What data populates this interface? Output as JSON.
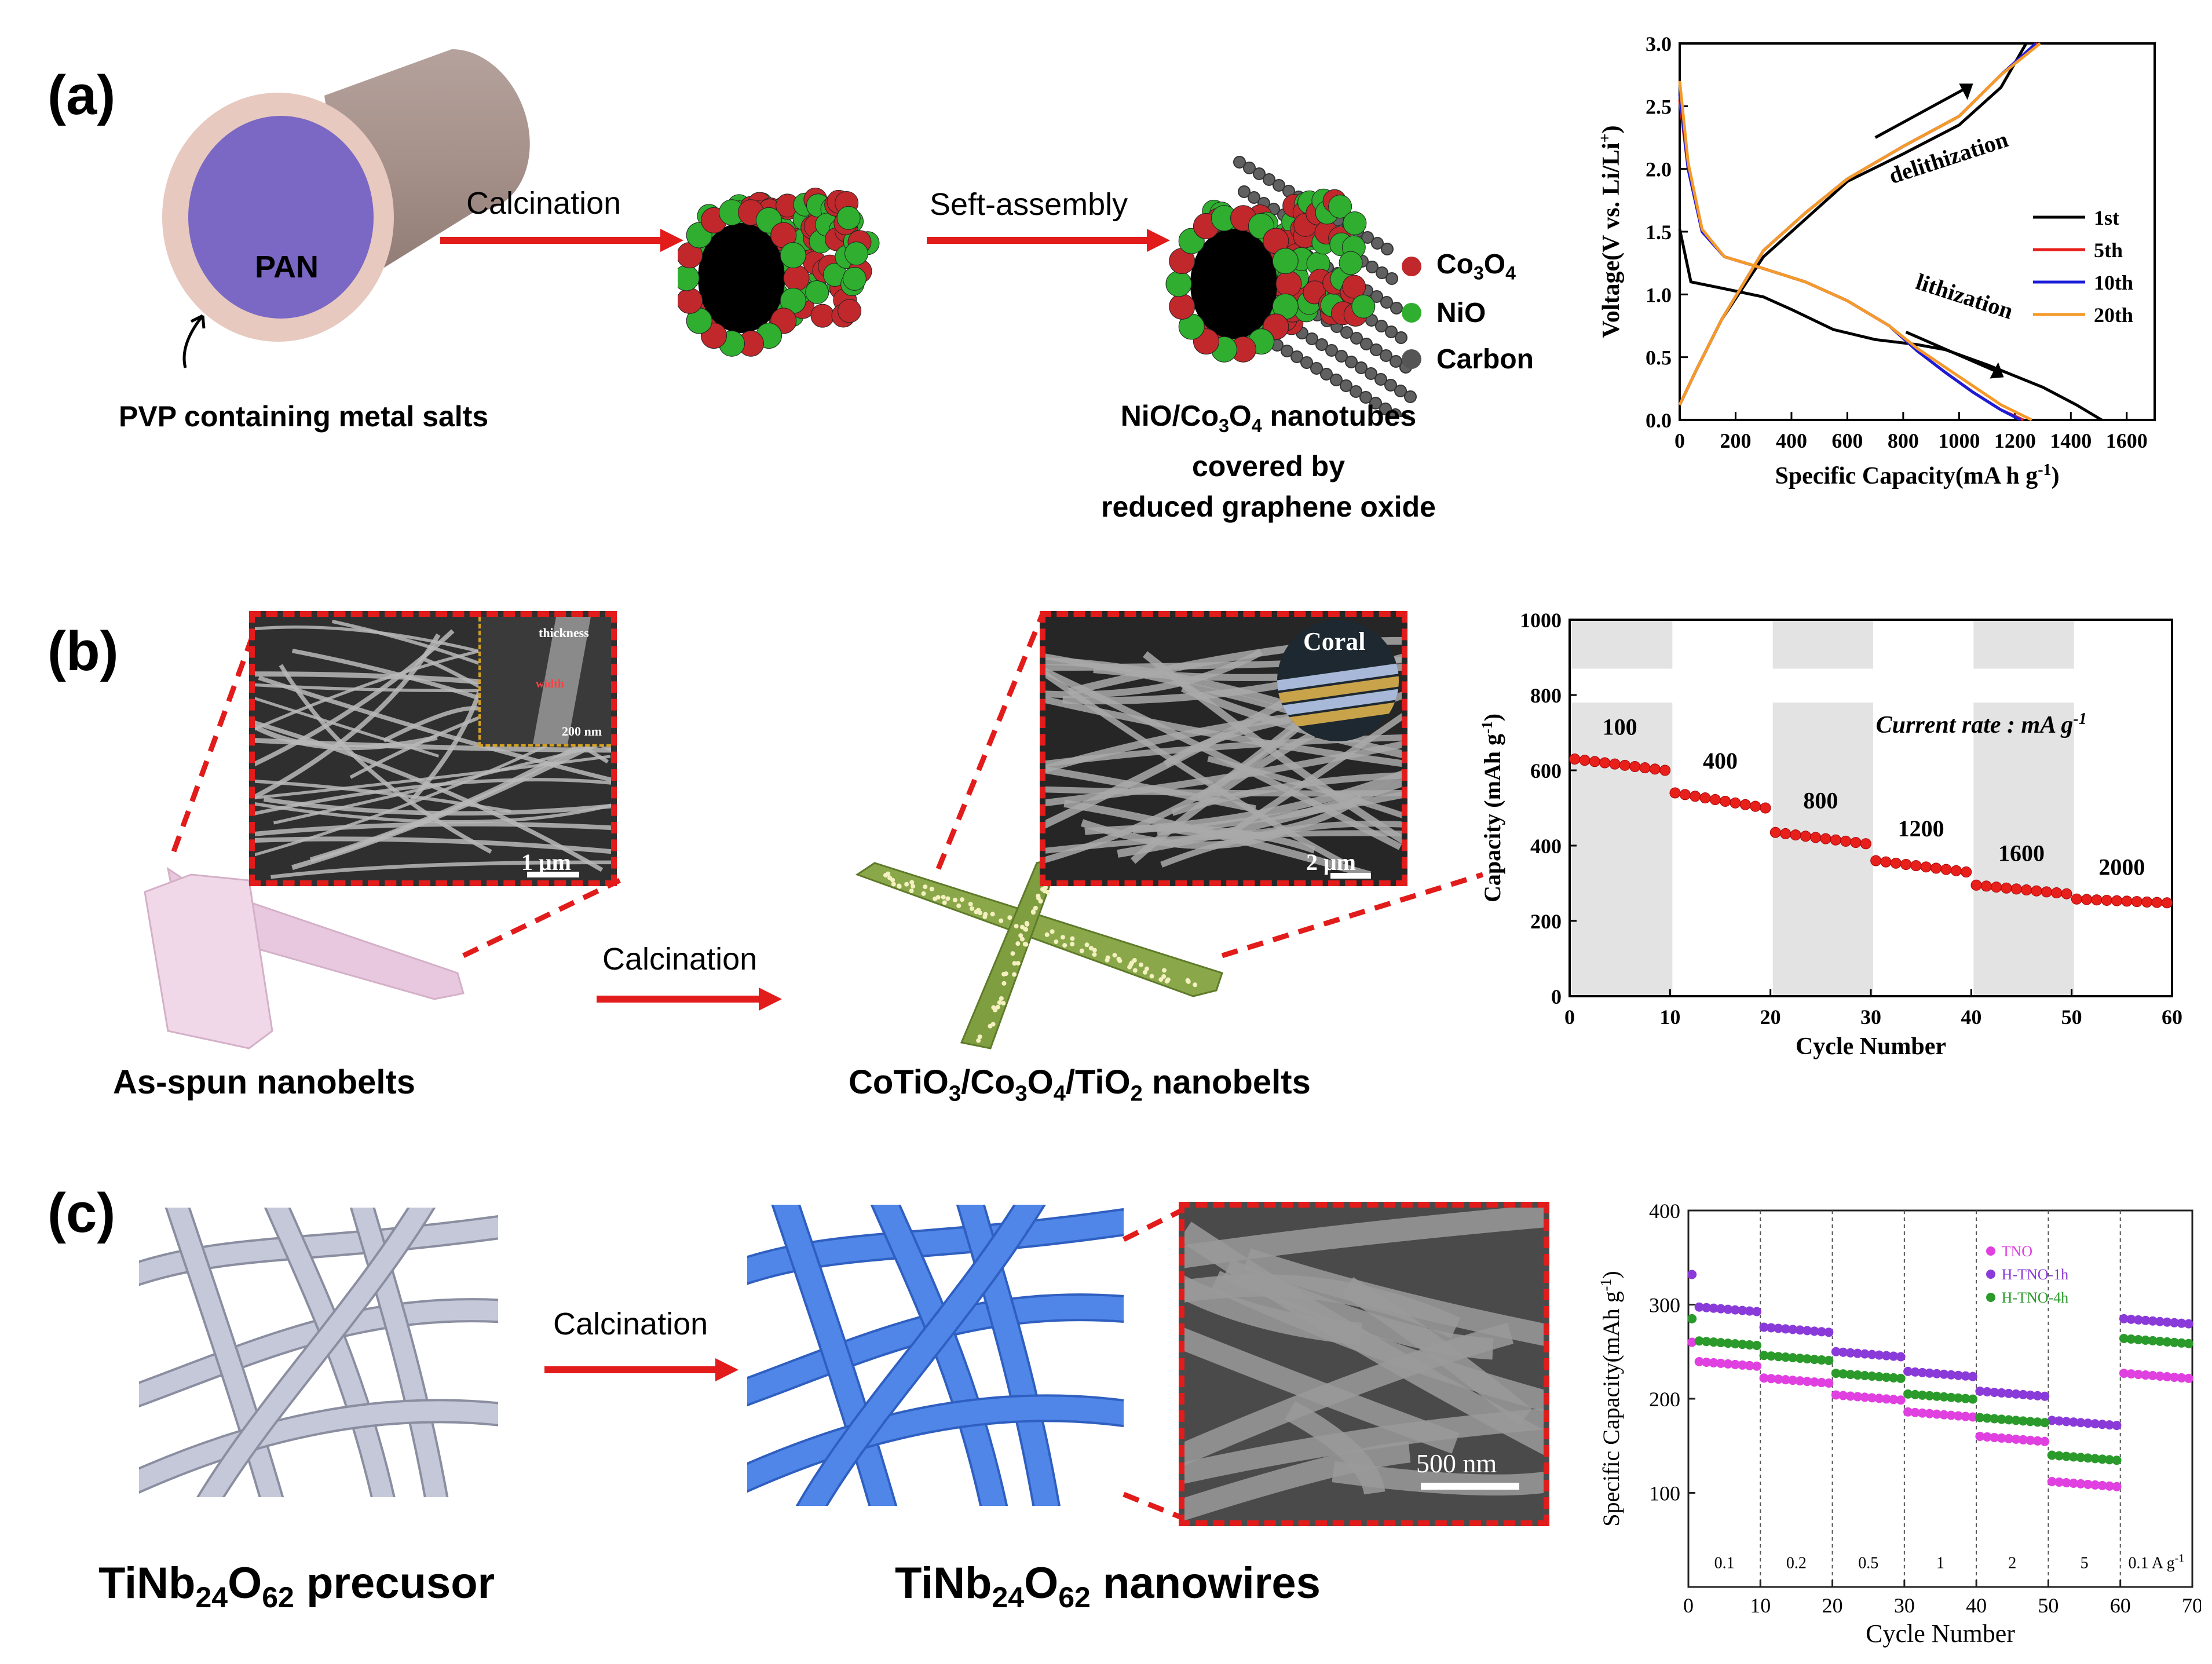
{
  "panel_a": {
    "label": "(a)",
    "pan_label": "PAN",
    "pvp_label": "PVP containing metal salts",
    "arrow1_label": "Calcination",
    "arrow2_label": "Seft-assembly",
    "legend": [
      {
        "label": "Co",
        "sub1": "3",
        "mid": "O",
        "sub2": "4",
        "color": "#c0282c"
      },
      {
        "label": "NiO",
        "color": "#2fae2f"
      },
      {
        "label": "Carbon",
        "color": "#555555"
      }
    ],
    "caption": {
      "line1_pre": "NiO/Co",
      "line1_sub1": "3",
      "line1_mid": "O",
      "line1_sub2": "4",
      "line1_post": " nanotubes",
      "line2": "covered by",
      "line3": "reduced graphene oxide"
    }
  },
  "panel_b": {
    "label": "(b)",
    "sem1_scale": "1 μm",
    "sem1_inset_scale": "200 nm",
    "sem1_inset_labels": [
      "thickness",
      "width"
    ],
    "sem2_scale": "2 μm",
    "sem2_inset_label": "Coral",
    "arrow_label": "Calcination",
    "left_caption": "As-spun nanobelts",
    "right_caption": {
      "p1": "CoTiO",
      "s1": "3",
      "p2": "/Co",
      "s2": "3",
      "p3": "O",
      "s3": "4",
      "p4": "/TiO",
      "s4": "2",
      "p5": " nanobelts"
    }
  },
  "panel_c": {
    "label": "(c)",
    "arrow_label": "Calcination",
    "sem_scale": "500 nm",
    "left_caption": {
      "p1": "TiNb",
      "s1": "24",
      "p2": "O",
      "s2": "62",
      "p3": " precusor"
    },
    "right_caption": {
      "p1": "TiNb",
      "s1": "24",
      "p2": "O",
      "s2": "62",
      "p3": " nanowires"
    }
  },
  "chart_data": [
    {
      "type": "line",
      "panel": "a",
      "xlabel": "Specific Capacity(mA h g",
      "xlabel_sup": "-1",
      "xlabel_end": ")",
      "ylabel": "Voltage(V vs. Li/Li",
      "ylabel_sup": "+",
      "ylabel_end": ")",
      "xlim": [
        0,
        1700
      ],
      "ylim": [
        0,
        3.0
      ],
      "xticks": [
        "0",
        "200",
        "400",
        "600",
        "800",
        "1000",
        "1200",
        "1400",
        "1600"
      ],
      "yticks": [
        "0.0",
        "0.5",
        "1.0",
        "1.5",
        "2.0",
        "2.5",
        "3.0"
      ],
      "annotations": [
        "delithization",
        "lithization"
      ],
      "series": [
        {
          "name": "1st",
          "color": "#000000",
          "discharge": [
            [
              0,
              1.52
            ],
            [
              40,
              1.1
            ],
            [
              150,
              1.05
            ],
            [
              300,
              0.98
            ],
            [
              400,
              0.88
            ],
            [
              550,
              0.72
            ],
            [
              700,
              0.64
            ],
            [
              850,
              0.6
            ],
            [
              950,
              0.56
            ],
            [
              1100,
              0.44
            ],
            [
              1300,
              0.26
            ],
            [
              1420,
              0.12
            ],
            [
              1510,
              0.0
            ]
          ],
          "charge": [
            [
              0,
              0.12
            ],
            [
              60,
              0.4
            ],
            [
              150,
              0.8
            ],
            [
              300,
              1.3
            ],
            [
              450,
              1.6
            ],
            [
              600,
              1.9
            ],
            [
              800,
              2.12
            ],
            [
              1000,
              2.35
            ],
            [
              1150,
              2.65
            ],
            [
              1240,
              3.0
            ]
          ]
        },
        {
          "name": "5th",
          "color": "#e8201c",
          "discharge": [
            [
              0,
              2.55
            ],
            [
              30,
              2.0
            ],
            [
              80,
              1.5
            ],
            [
              160,
              1.3
            ],
            [
              280,
              1.22
            ],
            [
              450,
              1.1
            ],
            [
              600,
              0.95
            ],
            [
              750,
              0.75
            ],
            [
              850,
              0.55
            ],
            [
              950,
              0.38
            ],
            [
              1050,
              0.22
            ],
            [
              1150,
              0.08
            ],
            [
              1230,
              0.0
            ]
          ],
          "charge": [
            [
              0,
              0.12
            ],
            [
              60,
              0.4
            ],
            [
              150,
              0.8
            ],
            [
              300,
              1.35
            ],
            [
              450,
              1.65
            ],
            [
              600,
              1.92
            ],
            [
              800,
              2.18
            ],
            [
              1000,
              2.42
            ],
            [
              1150,
              2.75
            ],
            [
              1280,
              3.0
            ]
          ]
        },
        {
          "name": "10th",
          "color": "#1c1cd8",
          "discharge": [
            [
              0,
              2.6
            ],
            [
              30,
              2.0
            ],
            [
              80,
              1.5
            ],
            [
              160,
              1.3
            ],
            [
              280,
              1.22
            ],
            [
              450,
              1.1
            ],
            [
              600,
              0.95
            ],
            [
              750,
              0.75
            ],
            [
              850,
              0.55
            ],
            [
              950,
              0.38
            ],
            [
              1050,
              0.22
            ],
            [
              1150,
              0.08
            ],
            [
              1220,
              0.0
            ]
          ],
          "charge": [
            [
              0,
              0.12
            ],
            [
              60,
              0.4
            ],
            [
              150,
              0.8
            ],
            [
              300,
              1.35
            ],
            [
              450,
              1.65
            ],
            [
              600,
              1.92
            ],
            [
              800,
              2.18
            ],
            [
              1000,
              2.42
            ],
            [
              1150,
              2.75
            ],
            [
              1275,
              3.0
            ]
          ]
        },
        {
          "name": "20th",
          "color": "#f59a2a",
          "discharge": [
            [
              0,
              2.7
            ],
            [
              30,
              2.05
            ],
            [
              80,
              1.52
            ],
            [
              160,
              1.3
            ],
            [
              280,
              1.22
            ],
            [
              450,
              1.1
            ],
            [
              600,
              0.95
            ],
            [
              750,
              0.75
            ],
            [
              850,
              0.57
            ],
            [
              950,
              0.42
            ],
            [
              1050,
              0.27
            ],
            [
              1150,
              0.12
            ],
            [
              1260,
              0.0
            ]
          ],
          "charge": [
            [
              0,
              0.12
            ],
            [
              60,
              0.4
            ],
            [
              150,
              0.8
            ],
            [
              300,
              1.35
            ],
            [
              450,
              1.65
            ],
            [
              600,
              1.92
            ],
            [
              800,
              2.18
            ],
            [
              1000,
              2.42
            ],
            [
              1150,
              2.75
            ],
            [
              1290,
              3.0
            ]
          ]
        }
      ]
    },
    {
      "type": "scatter",
      "panel": "b",
      "xlabel": "Cycle Number",
      "ylabel": "Capacity (mAh g",
      "ylabel_sup": "-1",
      "ylabel_end": ")",
      "xlim": [
        0,
        60
      ],
      "ylim": [
        0,
        1000
      ],
      "xticks": [
        "0",
        "10",
        "20",
        "30",
        "40",
        "50",
        "60"
      ],
      "yticks": [
        "0",
        "200",
        "400",
        "600",
        "800",
        "1000"
      ],
      "annotation": "Current rate : mA g",
      "annotation_sup": "-1",
      "rate_labels": [
        "100",
        "400",
        "800",
        "1200",
        "1600",
        "2000"
      ],
      "segments": [
        {
          "rate": "100",
          "start": 630,
          "end": 600
        },
        {
          "rate": "400",
          "start": 540,
          "end": 500
        },
        {
          "rate": "800",
          "start": 435,
          "end": 405
        },
        {
          "rate": "1200",
          "start": 360,
          "end": 330
        },
        {
          "rate": "1600",
          "start": 295,
          "end": 272
        },
        {
          "rate": "2000",
          "start": 258,
          "end": 248
        }
      ]
    },
    {
      "type": "scatter",
      "panel": "c",
      "xlabel": "Cycle Number",
      "ylabel": "Specific Capacity(mAh g",
      "ylabel_sup": "-1",
      "ylabel_end": ")",
      "xlim": [
        0,
        70
      ],
      "ylim": [
        0,
        400
      ],
      "xticks": [
        "0",
        "10",
        "20",
        "30",
        "40",
        "50",
        "60",
        "70"
      ],
      "yticks": [
        "100",
        "200",
        "300",
        "400"
      ],
      "rate_labels": [
        "0.1",
        "0.2",
        "0.5",
        "1",
        "2",
        "5",
        "0.1 A g"
      ],
      "rate_label_sup": "-1",
      "series": [
        {
          "name": "TNO",
          "color": "#e040e0",
          "levels": [
            240,
            222,
            204,
            186,
            160,
            112,
            227
          ],
          "first": 260
        },
        {
          "name": "H-TNO-1h",
          "color": "#8a3ad8",
          "levels": [
            298,
            276,
            250,
            229,
            208,
            177,
            285
          ],
          "first": 332
        },
        {
          "name": "H-TNO-4h",
          "color": "#2a9a2a",
          "levels": [
            262,
            246,
            227,
            205,
            180,
            140,
            264
          ],
          "first": 285
        }
      ]
    }
  ]
}
